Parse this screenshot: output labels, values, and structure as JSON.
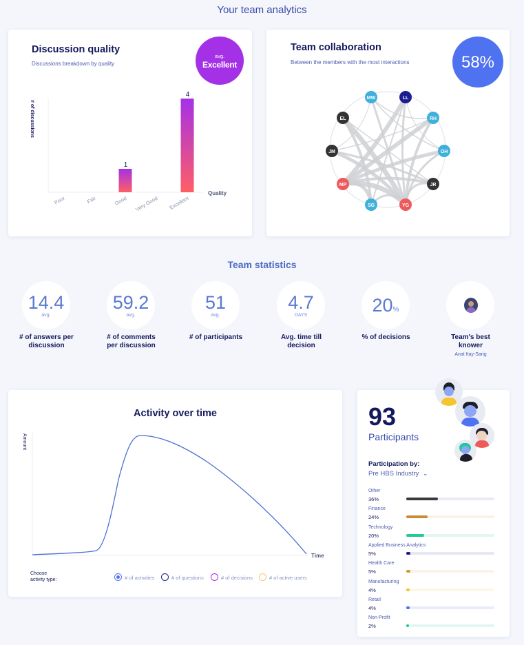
{
  "page_title": "Your team analytics",
  "discussion_quality": {
    "title": "Discussion quality",
    "subtitle": "Discussions breakdown by quality",
    "badge_top": "avg.",
    "badge_value": "Excellent",
    "y_label": "# of discussions",
    "x_label": "Quality",
    "chart_data": {
      "type": "bar",
      "categories": [
        "Poor",
        "Fair",
        "Good",
        "Very Good",
        "Excellent"
      ],
      "values": [
        0,
        0,
        1,
        0,
        4
      ],
      "xlabel": "Quality",
      "ylabel": "# of discussions",
      "ylim": [
        0,
        4
      ]
    }
  },
  "team_collaboration": {
    "title": "Team collaboration",
    "subtitle": "Between the members with the most interactions",
    "badge_value": "58%",
    "nodes": [
      {
        "id": "MW",
        "color": "#3fb0d9"
      },
      {
        "id": "LL",
        "color": "#1b1c8e"
      },
      {
        "id": "RH",
        "color": "#3fb0d9"
      },
      {
        "id": "OH",
        "color": "#3fb0d9"
      },
      {
        "id": "JR",
        "color": "#333333"
      },
      {
        "id": "YG",
        "color": "#ee5a5a"
      },
      {
        "id": "SG",
        "color": "#3fb0d9"
      },
      {
        "id": "MP",
        "color": "#ee5a5a"
      },
      {
        "id": "JM",
        "color": "#333333"
      },
      {
        "id": "EL",
        "color": "#333333"
      }
    ]
  },
  "team_statistics": {
    "title": "Team statistics",
    "items": [
      {
        "value": "14.4",
        "unit": "avg.",
        "label": "# of answers per discussion"
      },
      {
        "value": "59.2",
        "unit": "avg.",
        "label": "# of comments per discussion"
      },
      {
        "value": "51",
        "unit": "avg.",
        "label": "# of participants"
      },
      {
        "value": "4.7",
        "unit": "DAYS",
        "label": "Avg. time till decision"
      },
      {
        "value": "20",
        "unit": "%",
        "label": "% of decisions"
      },
      {
        "value": "",
        "unit": "",
        "label": "Team's best knower",
        "sublabel": "Anat Itay-Sarig"
      }
    ]
  },
  "activity": {
    "title": "Activity over time",
    "y_label": "Amount",
    "x_label": "Time",
    "choose_label_1": "Choose",
    "choose_label_2": "activity type:",
    "legend": [
      {
        "label": "# of activities",
        "color": "#4f72f0",
        "selected": true
      },
      {
        "label": "# of questions",
        "color": "#1b1c8e",
        "selected": false
      },
      {
        "label": "# of decisions",
        "color": "#a531e6",
        "selected": false
      },
      {
        "label": "# of active users",
        "color": "#f5c86a",
        "selected": false
      }
    ],
    "line_color": "#4a6ed4"
  },
  "participants": {
    "count": "93",
    "label": "Participants",
    "by_label": "Participation by:",
    "filter": "Pre HBS Industry",
    "rows": [
      {
        "name": "Other",
        "pct": "36%",
        "value": 0.36,
        "color": "#3a3a3a",
        "track": "#e9ebf3"
      },
      {
        "name": "Finance",
        "pct": "24%",
        "value": 0.24,
        "color": "#c88a32",
        "track": "#fbf1e6"
      },
      {
        "name": "Technology",
        "pct": "20%",
        "value": 0.2,
        "color": "#22c99a",
        "track": "#e2f7f0"
      },
      {
        "name": "Applied Business Analytics",
        "pct": "5%",
        "value": 0.05,
        "color": "#1b1c8e",
        "track": "#e6e7f3"
      },
      {
        "name": "Health Care",
        "pct": "5%",
        "value": 0.05,
        "color": "#d8963a",
        "track": "#fbf3e8"
      },
      {
        "name": "Manufacturing",
        "pct": "4%",
        "value": 0.04,
        "color": "#f0c530",
        "track": "#fdf8e4"
      },
      {
        "name": "Retail",
        "pct": "4%",
        "value": 0.04,
        "color": "#4f72f0",
        "track": "#e8edfb"
      },
      {
        "name": "Non-Profit",
        "pct": "2%",
        "value": 0.02,
        "color": "#22c99a",
        "track": "#e2f7f0"
      }
    ]
  }
}
